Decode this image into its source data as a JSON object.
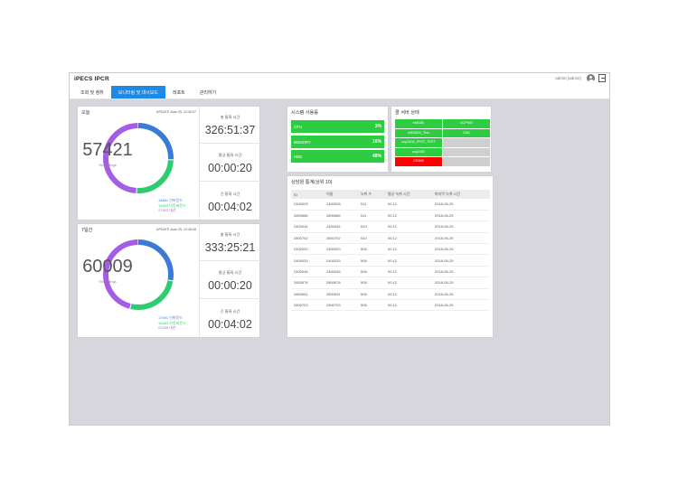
{
  "app": {
    "title": "iPECS IPCR",
    "user": "admin (admin)"
  },
  "nav": {
    "tabs": [
      {
        "label": "조회 및 청취"
      },
      {
        "label": "모니터링 및 대시보드"
      },
      {
        "label": "레포트"
      },
      {
        "label": "관리하기"
      }
    ],
    "active_index": 1
  },
  "today": {
    "title": "오늘",
    "update": "UPDATE June 25, 12:45:07",
    "total": "57421",
    "sub": "Recordings",
    "legend": [
      "14861 인바운드",
      "14303 아웃바운드",
      "27403 내선"
    ],
    "segments": [
      0.26,
      0.25,
      0.49
    ],
    "stats": [
      {
        "label": "총 통화 시간",
        "value": "326:51:37"
      },
      {
        "label": "평균 통화 시간",
        "value": "00:00:20"
      },
      {
        "label": "긴 통화 시간",
        "value": "00:04:02"
      }
    ]
  },
  "week": {
    "title": "7일간",
    "update": "UPDATE June 25, 12:45:08",
    "total": "60009",
    "sub": "Recordings",
    "legend": [
      "17091 인바운드",
      "15483 아웃바운드",
      "27435 내선"
    ],
    "segments": [
      0.28,
      0.26,
      0.46
    ],
    "stats": [
      {
        "label": "총 통화 시간",
        "value": "333:25:21"
      },
      {
        "label": "평균 통화 시간",
        "value": "00:00:20"
      },
      {
        "label": "긴 통화 시간",
        "value": "00:04:02"
      }
    ]
  },
  "system": {
    "title": "시스템 사용률",
    "items": [
      {
        "label": "CPU",
        "value": "3%"
      },
      {
        "label": "MEMORY",
        "value": "16%"
      },
      {
        "label": "HDD",
        "value": "48%"
      }
    ]
  },
  "servers": {
    "title": "콜 서버 상태",
    "items": [
      {
        "label": "eMG80",
        "status": "on"
      },
      {
        "label": "UCP600",
        "status": "on"
      },
      {
        "label": "eMG800_Test",
        "status": "on"
      },
      {
        "label": "CM1",
        "status": "on"
      },
      {
        "label": "ucp2400_IPCR_TEST",
        "status": "on"
      },
      {
        "label": "",
        "status": "off"
      },
      {
        "label": "ucp2400",
        "status": "on"
      },
      {
        "label": "",
        "status": "off"
      },
      {
        "label": "CS600",
        "status": "err"
      },
      {
        "label": "",
        "status": "off"
      }
    ]
  },
  "agents": {
    "title": "상담원 통계(상위 10)",
    "columns": [
      "ID",
      "이름",
      "녹취 수",
      "평균 녹취 시간",
      "마지막 녹취 시간"
    ],
    "rows": [
      [
        "2400029",
        "2400028",
        "511",
        "00:12",
        "2018-06-25"
      ],
      [
        "2800686",
        "2800686",
        "511",
        "00:12",
        "2018-06-25"
      ],
      [
        "2400044",
        "2400044",
        "510",
        "00:12",
        "2018-06-25"
      ],
      [
        "2800702",
        "2800702",
        "510",
        "00:12",
        "2018-06-25"
      ],
      [
        "2400020",
        "2400020",
        "508",
        "00:12",
        "2018-06-25"
      ],
      [
        "2400033",
        "2400033",
        "508",
        "00:12",
        "2018-06-25"
      ],
      [
        "2400046",
        "2400046",
        "508",
        "00:12",
        "2018-06-25"
      ],
      [
        "2800678",
        "2800678",
        "508",
        "00:12",
        "2018-06-25"
      ],
      [
        "2800691",
        "2800691",
        "508",
        "00:12",
        "2018-06-25"
      ],
      [
        "2800703",
        "2800703",
        "508",
        "00:12",
        "2018-06-25"
      ]
    ]
  },
  "colors": {
    "accent": "#1e88e5",
    "inbound": "#3a7bd5",
    "outbound": "#2ecc71",
    "internal": "#a45ee5",
    "ok": "#2ecc40",
    "error": "#ff0000"
  }
}
